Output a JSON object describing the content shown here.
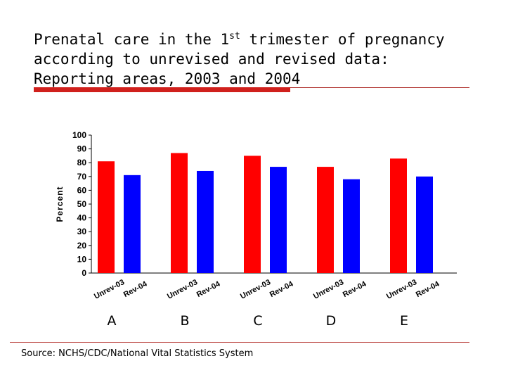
{
  "slide": {
    "title_line1_pre": "Prenatal care in the 1",
    "title_line1_sup": "st",
    "title_line1_post": " trimester of pregnancy",
    "title_line2": "according to unrevised and revised data:",
    "title_line3": "Reporting areas, 2003 and 2004",
    "source": "Source: NCHS/CDC/National Vital Statistics System",
    "accent_color": "#d0201c"
  },
  "chart_data": {
    "type": "bar",
    "title": "",
    "xlabel": "",
    "ylabel": "Percent",
    "ylim": [
      0,
      100
    ],
    "yticks": [
      0,
      10,
      20,
      30,
      40,
      50,
      60,
      70,
      80,
      90,
      100
    ],
    "groups": [
      "A",
      "B",
      "C",
      "D",
      "E"
    ],
    "bar_labels": [
      "Unrev-03",
      "Rev-04"
    ],
    "series": [
      {
        "name": "Unrev-03",
        "color": "#ff0000",
        "values": [
          81,
          87,
          85,
          77,
          83
        ]
      },
      {
        "name": "Rev-04",
        "color": "#0000ff",
        "values": [
          71,
          74,
          77,
          68,
          70
        ]
      }
    ]
  }
}
